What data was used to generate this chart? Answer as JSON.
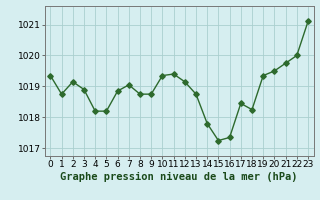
{
  "x": [
    0,
    1,
    2,
    3,
    4,
    5,
    6,
    7,
    8,
    9,
    10,
    11,
    12,
    13,
    14,
    15,
    16,
    17,
    18,
    19,
    20,
    21,
    22,
    23
  ],
  "y": [
    1019.35,
    1018.75,
    1019.15,
    1018.9,
    1018.2,
    1018.2,
    1018.85,
    1019.05,
    1018.75,
    1018.75,
    1019.35,
    1019.4,
    1019.15,
    1018.75,
    1017.8,
    1017.25,
    1017.35,
    1018.45,
    1018.25,
    1019.35,
    1019.5,
    1019.75,
    1020.0,
    1021.1
  ],
  "line_color": "#2d6a2d",
  "marker": "D",
  "markersize": 2.8,
  "linewidth": 1.0,
  "bg_color": "#d6eef0",
  "grid_color": "#aacfcf",
  "xlabel": "Graphe pression niveau de la mer (hPa)",
  "xlabel_fontsize": 7.5,
  "tick_fontsize": 6.5,
  "ylim": [
    1016.75,
    1021.6
  ],
  "yticks": [
    1017,
    1018,
    1019,
    1020,
    1021
  ],
  "xticks": [
    0,
    1,
    2,
    3,
    4,
    5,
    6,
    7,
    8,
    9,
    10,
    11,
    12,
    13,
    14,
    15,
    16,
    17,
    18,
    19,
    20,
    21,
    22,
    23
  ]
}
